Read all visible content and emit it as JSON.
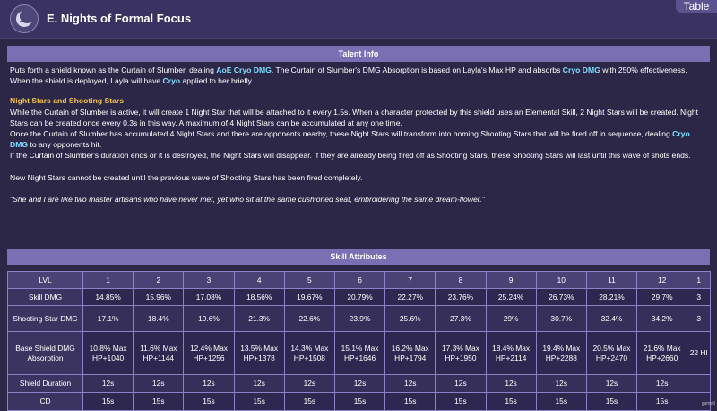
{
  "header": {
    "skill_name": "E. Nights of Formal Focus",
    "table_tag": "Table",
    "icon": "crescent-moon-skill-icon"
  },
  "talent_info": {
    "section_title": "Talent Info",
    "intro": [
      {
        "t": "Puts forth a shield known as the Curtain of Slumber, dealing "
      },
      {
        "t": "AoE Cryo DMG",
        "c": "cryo"
      },
      {
        "t": ". The Curtain of Slumber's DMG Absorption is based on Layla's Max HP and absorbs "
      },
      {
        "t": "Cryo DMG",
        "c": "cryo"
      },
      {
        "t": " with 250% effectiveness. When the shield is deployed, Layla will have "
      },
      {
        "t": "Cryo",
        "c": "cryo"
      },
      {
        "t": " applied to her briefly."
      }
    ],
    "subheading": "Night Stars and Shooting Stars",
    "p1": "While the Curtain of Slumber is active, it will create 1 Night Star that will be attached to it every 1.5s. When a character protected by this shield uses an Elemental Skill, 2 Night Stars will be created. Night Stars can be created once every 0.3s in this way. A maximum of 4 Night Stars can be accumulated at any one time.",
    "p2": [
      {
        "t": "Once the Curtain of Slumber has accumulated 4 Night Stars and there are opponents nearby, these Night Stars will transform into homing Shooting Stars that will be fired off in sequence, dealing "
      },
      {
        "t": "Cryo DMG",
        "c": "cryo"
      },
      {
        "t": " to any opponents hit."
      }
    ],
    "p3": "If the Curtain of Slumber's duration ends or it is destroyed, the Night Stars will disappear. If they are already being fired off as Shooting Stars, these Shooting Stars will last until this wave of shots ends.",
    "p4": "New Night Stars cannot be created until the previous wave of Shooting Stars has been fired completely.",
    "quote": "\"She and I are like two master artisans who have never met, yet who sit at the same cushioned seat, embroidering the same dream-flower.\""
  },
  "skill_attributes": {
    "section_title": "Skill Attributes",
    "lvl_label": "LVL",
    "levels": [
      "1",
      "2",
      "3",
      "4",
      "5",
      "6",
      "7",
      "8",
      "9",
      "10",
      "11",
      "12",
      "1"
    ],
    "rows": [
      {
        "label": "Skill DMG",
        "values": [
          "14.85%",
          "15.96%",
          "17.08%",
          "18.56%",
          "19.67%",
          "20.79%",
          "22.27%",
          "23.76%",
          "25.24%",
          "26.73%",
          "28.21%",
          "29.7%",
          "3"
        ]
      },
      {
        "label": "Shooting Star DMG",
        "values": [
          "17.1%",
          "18.4%",
          "19.6%",
          "21.3%",
          "22.6%",
          "23.9%",
          "25.6%",
          "27.3%",
          "29%",
          "30.7%",
          "32.4%",
          "34.2%",
          "3"
        ]
      },
      {
        "label": "Base Shield DMG Absorption",
        "values": [
          "10.8% Max HP+1040",
          "11.6% Max HP+1144",
          "12.4% Max HP+1256",
          "13.5% Max HP+1378",
          "14.3% Max HP+1508",
          "15.1% Max HP+1646",
          "16.2% Max HP+1794",
          "17.3% Max HP+1950",
          "18.4% Max HP+2114",
          "19.4% Max HP+2288",
          "20.5% Max HP+2470",
          "21.6% Max HP+2660",
          "22 HI"
        ]
      },
      {
        "label": "Shield Duration",
        "values": [
          "12s",
          "12s",
          "12s",
          "12s",
          "12s",
          "12s",
          "12s",
          "12s",
          "12s",
          "12s",
          "12s",
          "12s",
          ""
        ]
      },
      {
        "label": "CD",
        "values": [
          "15s",
          "15s",
          "15s",
          "15s",
          "15s",
          "15s",
          "15s",
          "15s",
          "15s",
          "15s",
          "15s",
          "15s",
          ""
        ]
      }
    ]
  },
  "colors": {
    "cryo": "#7ee0ff",
    "gold": "#f3c548",
    "bar": "#7b6fb3"
  }
}
